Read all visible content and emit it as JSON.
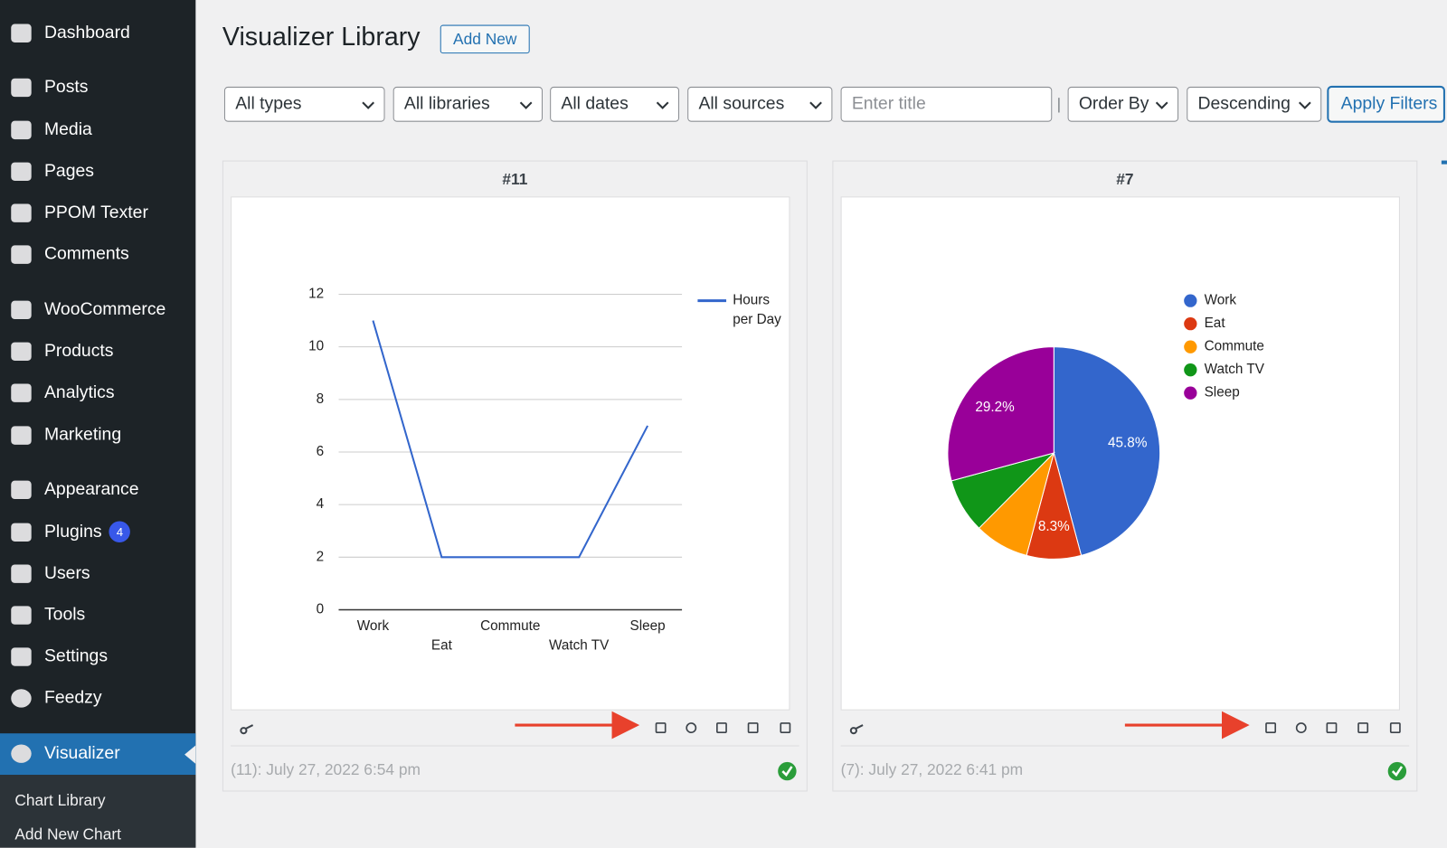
{
  "sidebar": {
    "menu": [
      {
        "label": "Dashboard"
      },
      {
        "label": "Posts"
      },
      {
        "label": "Media"
      },
      {
        "label": "Pages"
      },
      {
        "label": "PPOM Texter"
      },
      {
        "label": "Comments"
      },
      {
        "label": "WooCommerce"
      },
      {
        "label": "Products"
      },
      {
        "label": "Analytics"
      },
      {
        "label": "Marketing"
      },
      {
        "label": "Appearance"
      },
      {
        "label": "Plugins",
        "badge": 4
      },
      {
        "label": "Users"
      },
      {
        "label": "Tools"
      },
      {
        "label": "Settings"
      },
      {
        "label": "Feedzy"
      },
      {
        "label": "Visualizer"
      }
    ],
    "submenu": [
      "Chart Library",
      "Add New Chart"
    ]
  },
  "header": {
    "title": "Visualizer Library",
    "add_new": "Add New"
  },
  "filters": {
    "selects": [
      "All types",
      "All libraries",
      "All dates",
      "All sources"
    ],
    "title_placeholder": "Enter title",
    "order_by": "Order By",
    "order": "Descending",
    "apply": "Apply Filters"
  },
  "cards": [
    {
      "id": "#11",
      "footer": "(11): July 27, 2022 6:54 pm"
    },
    {
      "id": "#7",
      "footer": "(7): July 27, 2022 6:41 pm"
    }
  ],
  "chart_data": [
    {
      "type": "line",
      "categories": [
        "Work",
        "Eat",
        "Commute",
        "Watch TV",
        "Sleep"
      ],
      "series": [
        {
          "name": "Hours per Day",
          "color": "#3366cc",
          "values": [
            11,
            2,
            2,
            2,
            7
          ]
        }
      ],
      "ylim": [
        0,
        12
      ],
      "yticks": [
        0,
        2,
        4,
        6,
        8,
        10,
        12
      ],
      "grid": true,
      "legend": "right"
    },
    {
      "type": "pie",
      "categories": [
        "Work",
        "Eat",
        "Commute",
        "Watch TV",
        "Sleep"
      ],
      "values": [
        45.8,
        8.3,
        8.3,
        8.3,
        29.2
      ],
      "value_labels": [
        "45.8%",
        "8.3%",
        null,
        null,
        "29.2%"
      ],
      "colors": [
        "#3366cc",
        "#dc3912",
        "#ff9900",
        "#109618",
        "#990099"
      ],
      "legend": "right"
    }
  ]
}
